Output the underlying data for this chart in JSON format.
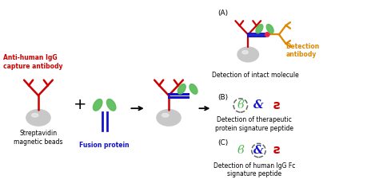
{
  "bg_color": "#ffffff",
  "fig_width": 4.74,
  "fig_height": 2.35,
  "colors": {
    "red": "#cc0000",
    "blue": "#1111cc",
    "green": "#55bb55",
    "orange": "#dd8800",
    "gray_light": "#c8c8c8",
    "gray_grad": "#e8e8e8",
    "pink": "#ee2244",
    "dark": "#222222"
  },
  "labels": {
    "anti_human": "Anti-human IgG\ncapture antibody",
    "streptavidin": "Streptavidin\nmagnetic beads",
    "fusion": "Fusion protein",
    "detection": "Detection\nantibody",
    "detect_intact": "Detection of intact molecule",
    "detect_therapeutic": "Detection of therapeutic\nprotein signature peptide",
    "detect_human": "Detection of human IgG Fc\nsignature peptide",
    "A": "(A)",
    "B": "(B)",
    "C": "(C)"
  }
}
